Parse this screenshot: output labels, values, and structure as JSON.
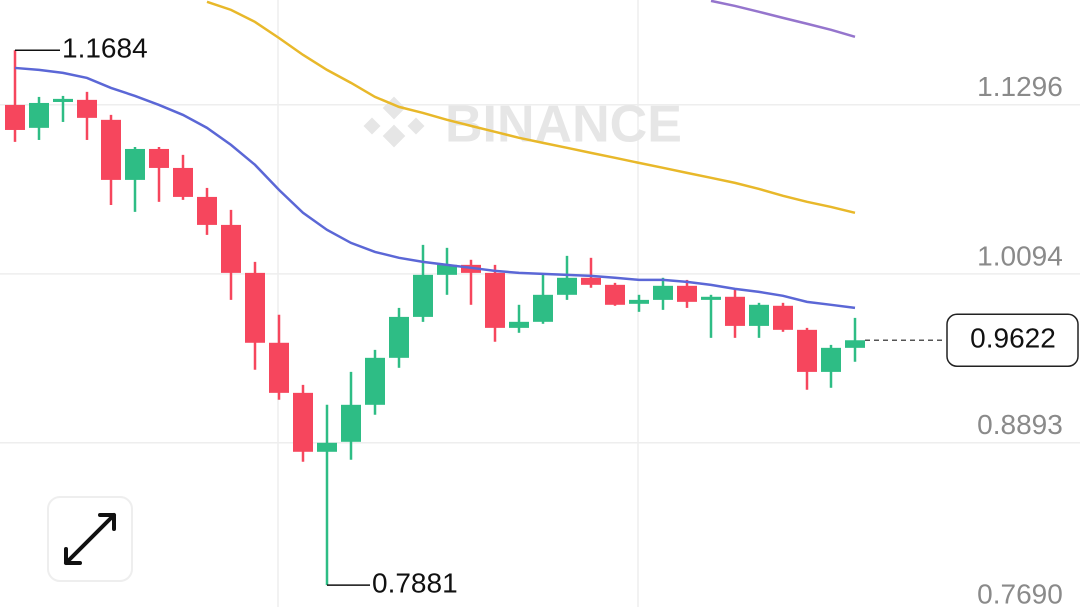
{
  "chart_data": {
    "type": "candlestick",
    "watermark": "BINANCE",
    "up_color": "#2ebd85",
    "down_color": "#f6465d",
    "grid": true,
    "ylim": [
      0.769,
      1.2041
    ],
    "yticks": [
      1.1296,
      1.0094,
      0.8893,
      {
        "value": 0.769,
        "label": "0.7690"
      }
    ],
    "open": [
      1.1295,
      1.1132,
      1.1316,
      1.1331,
      1.1189,
      1.0762,
      1.0982,
      1.0847,
      1.0641,
      1.0442,
      1.0101,
      0.9604,
      0.9248,
      0.8829,
      0.89,
      0.9163,
      0.9497,
      0.9788,
      1.0087,
      1.0158,
      1.0101,
      0.971,
      0.9753,
      0.9945,
      1.0066,
      1.0016,
      0.9881,
      0.9909,
      1.0009,
      0.9909,
      0.9931,
      0.9724,
      0.9867,
      0.9696,
      0.9397,
      0.9568
    ],
    "high": [
      1.1684,
      1.1352,
      1.1359,
      1.1388,
      1.1224,
      1.0996,
      1.0996,
      1.094,
      1.0705,
      1.0549,
      1.0179,
      0.9803,
      0.9305,
      0.9163,
      0.9397,
      0.9554,
      0.9852,
      1.03,
      1.0279,
      1.0194,
      1.0158,
      0.9874,
      1.0087,
      1.0222,
      1.0208,
      1.003,
      0.9945,
      1.0066,
      1.0051,
      0.9945,
      0.998,
      0.9888,
      0.9888,
      0.971,
      0.9589,
      0.9781
    ],
    "low": [
      1.1032,
      1.1046,
      1.1174,
      1.1046,
      1.0584,
      1.0535,
      1.0606,
      1.062,
      1.0371,
      0.9909,
      0.9412,
      0.9199,
      0.8758,
      0.7881,
      0.8772,
      0.9092,
      0.9426,
      0.9753,
      0.9945,
      0.9874,
      0.9611,
      0.9675,
      0.9739,
      0.9909,
      0.9995,
      0.9867,
      0.9824,
      0.9838,
      0.9852,
      0.9639,
      0.9639,
      0.9639,
      0.9682,
      0.927,
      0.9284,
      0.9469
    ],
    "close": [
      1.1117,
      1.1309,
      1.1338,
      1.1203,
      1.0762,
      1.0982,
      1.0847,
      1.0641,
      1.0442,
      1.0101,
      0.9604,
      0.9248,
      0.8829,
      0.8893,
      0.9163,
      0.9497,
      0.9788,
      1.0087,
      1.0158,
      1.0101,
      0.971,
      0.9753,
      0.9945,
      1.0066,
      1.0016,
      0.9874,
      0.9909,
      1.0009,
      0.9895,
      0.9931,
      0.9724,
      0.9874,
      0.9696,
      0.9397,
      0.9568,
      0.9622
    ],
    "series": [
      {
        "color": "#5b67d6",
        "values": [
          1.1558,
          1.1544,
          1.1523,
          1.1487,
          1.1416,
          1.1359,
          1.1295,
          1.1224,
          1.1132,
          1.1011,
          1.0869,
          1.0691,
          1.0528,
          1.0407,
          1.0314,
          1.025,
          1.0208,
          1.0179,
          1.0158,
          1.0137,
          1.0115,
          1.0101,
          1.0094,
          1.0087,
          1.008,
          1.0066,
          1.0051,
          1.0051,
          1.0037,
          1.0016,
          0.9987,
          0.9966,
          0.9938,
          0.9895,
          0.9874,
          0.9852
        ]
      },
      {
        "color": "#e8b82a",
        "values": [
          null,
          null,
          null,
          null,
          null,
          null,
          null,
          null,
          1.2028,
          1.1971,
          1.1885,
          1.1771,
          1.1651,
          1.1544,
          1.1452,
          1.1352,
          1.1281,
          1.1238,
          1.1189,
          1.1146,
          1.1104,
          1.1061,
          1.1025,
          1.099,
          1.0954,
          1.0919,
          1.0883,
          1.0848,
          1.0812,
          1.0777,
          1.0741,
          1.0698,
          1.0649,
          1.0606,
          1.057,
          1.0528
        ]
      },
      {
        "color": "#9575cd",
        "values": [
          null,
          null,
          null,
          null,
          null,
          null,
          null,
          null,
          null,
          null,
          null,
          null,
          null,
          null,
          null,
          null,
          null,
          null,
          null,
          null,
          null,
          null,
          null,
          null,
          null,
          null,
          null,
          null,
          null,
          1.2035,
          1.1999,
          1.1957,
          1.1914,
          1.1872,
          1.1829,
          1.1779
        ]
      }
    ]
  }
}
